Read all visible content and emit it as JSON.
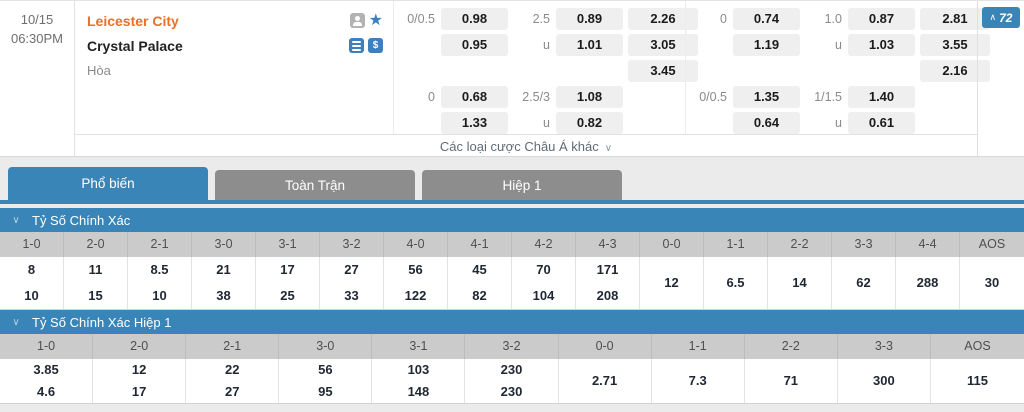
{
  "match": {
    "date": "10/15",
    "time": "06:30PM",
    "home_team": "Leicester City",
    "away_team": "Crystal Palace",
    "draw_label": "Hòa",
    "icons": [
      "user",
      "star-favorite",
      "stats",
      "dollar-cashout"
    ],
    "dollar_glyph": "$",
    "more_bets_label": "Các loại cược Châu Á khác",
    "collapse_count": "72",
    "odds": {
      "ft": {
        "hdp_label": "0/0.5",
        "hdp_home": "0.98",
        "hdp_away": "0.95",
        "ou_over_label": "2.5",
        "ou_over": "0.89",
        "ou_under_label": "u",
        "ou_under": "1.01",
        "x12_home": "2.26",
        "x12_away": "3.05",
        "x12_draw": "3.45"
      },
      "ft2": {
        "hdp_label": "0",
        "hdp_home": "0.68",
        "hdp_away": "1.33",
        "ou_over_label": "2.5/3",
        "ou_over": "1.08",
        "ou_under_label": "u",
        "ou_under": "0.82"
      },
      "fh": {
        "hdp_label": "0",
        "hdp_home": "0.74",
        "hdp_away": "1.19",
        "ou_over_label": "1.0",
        "ou_over": "0.87",
        "ou_under_label": "u",
        "ou_under": "1.03",
        "x12_home": "2.81",
        "x12_away": "3.55",
        "x12_draw": "2.16"
      },
      "fh2": {
        "hdp_label": "0/0.5",
        "hdp_home": "1.35",
        "hdp_away": "0.64",
        "ou_over_label": "1/1.5",
        "ou_over": "1.40",
        "ou_under_label": "u",
        "ou_under": "0.61"
      }
    }
  },
  "tabs": [
    {
      "label": "Phổ biến",
      "active": true
    },
    {
      "label": "Toàn Trận",
      "active": false
    },
    {
      "label": "Hiệp 1",
      "active": false
    }
  ],
  "sections": [
    {
      "title": "Tỷ Số Chính Xác",
      "columns": [
        {
          "header": "1-0",
          "values": [
            "8",
            "10"
          ]
        },
        {
          "header": "2-0",
          "values": [
            "11",
            "15"
          ]
        },
        {
          "header": "2-1",
          "values": [
            "8.5",
            "10"
          ]
        },
        {
          "header": "3-0",
          "values": [
            "21",
            "38"
          ]
        },
        {
          "header": "3-1",
          "values": [
            "17",
            "25"
          ]
        },
        {
          "header": "3-2",
          "values": [
            "27",
            "33"
          ]
        },
        {
          "header": "4-0",
          "values": [
            "56",
            "122"
          ]
        },
        {
          "header": "4-1",
          "values": [
            "45",
            "82"
          ]
        },
        {
          "header": "4-2",
          "values": [
            "70",
            "104"
          ]
        },
        {
          "header": "4-3",
          "values": [
            "171",
            "208"
          ]
        },
        {
          "header": "0-0",
          "values": [
            "12"
          ]
        },
        {
          "header": "1-1",
          "values": [
            "6.5"
          ]
        },
        {
          "header": "2-2",
          "values": [
            "14"
          ]
        },
        {
          "header": "3-3",
          "values": [
            "62"
          ]
        },
        {
          "header": "4-4",
          "values": [
            "288"
          ]
        },
        {
          "header": "AOS",
          "values": [
            "30"
          ]
        }
      ]
    },
    {
      "title": "Tỷ Số Chính Xác Hiệp 1",
      "columns": [
        {
          "header": "1-0",
          "values": [
            "3.85",
            "4.6"
          ]
        },
        {
          "header": "2-0",
          "values": [
            "12",
            "17"
          ]
        },
        {
          "header": "2-1",
          "values": [
            "22",
            "27"
          ]
        },
        {
          "header": "3-0",
          "values": [
            "56",
            "95"
          ]
        },
        {
          "header": "3-1",
          "values": [
            "103",
            "148"
          ]
        },
        {
          "header": "3-2",
          "values": [
            "230",
            "230"
          ]
        },
        {
          "header": "0-0",
          "values": [
            "2.71"
          ]
        },
        {
          "header": "1-1",
          "values": [
            "7.3"
          ]
        },
        {
          "header": "2-2",
          "values": [
            "71"
          ]
        },
        {
          "header": "3-3",
          "values": [
            "300"
          ]
        },
        {
          "header": "AOS",
          "values": [
            "115"
          ]
        }
      ]
    }
  ],
  "colors": {
    "accent_blue": "#3a85b8",
    "icon_blue": "#3c80c0",
    "home_orange": "#e8702a",
    "inactive_tab_gray": "#8d8d8d",
    "table_header_gray": "#cbcbcb",
    "odd_box_gray": "#efefef"
  }
}
